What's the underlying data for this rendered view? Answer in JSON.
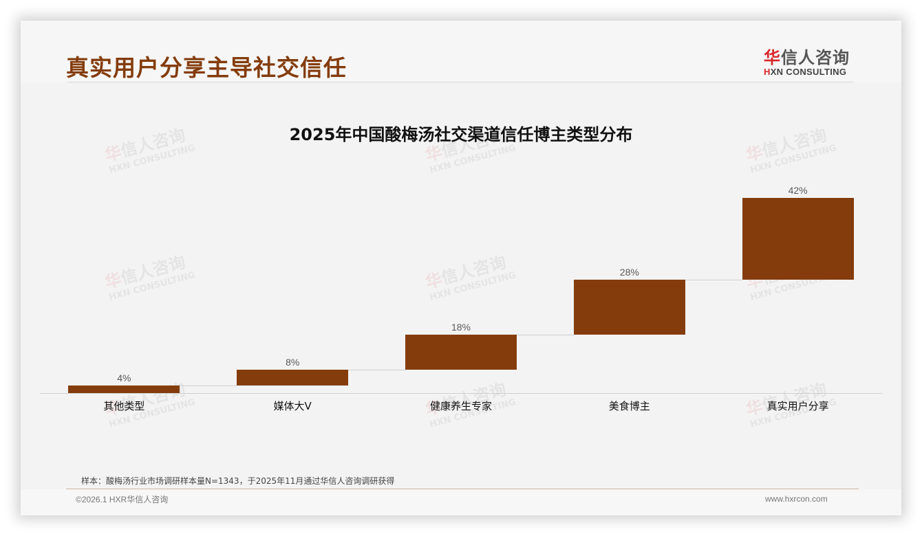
{
  "header": {
    "title": "真实用户分享主导社交信任",
    "logo": {
      "cn_prefix": "华",
      "cn_rest": "信人咨询",
      "en_prefix": "H",
      "en_rest": "XN CONSULTING"
    }
  },
  "watermark": {
    "cn_prefix": "华",
    "cn_rest": "信人咨询",
    "en": "HXN CONSULTING"
  },
  "chart_data": {
    "type": "bar",
    "subtype": "waterfall",
    "title": "2025年中国酸梅汤社交渠道信任博主类型分布",
    "categories": [
      "其他类型",
      "媒体大V",
      "健康养生专家",
      "美食博主",
      "真实用户分享"
    ],
    "values": [
      4,
      8,
      18,
      28,
      42
    ],
    "value_labels": [
      "4%",
      "8%",
      "18%",
      "28%",
      "42%"
    ],
    "cumulative_start": [
      0,
      4,
      12,
      30,
      58
    ],
    "cumulative_end": [
      4,
      12,
      30,
      58,
      100
    ],
    "unit": "%",
    "xlabel": "",
    "ylabel": "",
    "ylim": [
      0,
      100
    ],
    "grid": false,
    "legend": "none",
    "bar_color": "#843c0c"
  },
  "footer": {
    "sample_note": "样本：酸梅汤行业市场调研样本量N=1343，于2025年11月通过华信人咨询调研获得",
    "copyright": "©2026.1 HXR华信人咨询",
    "website": "www.hxrcon.com"
  }
}
